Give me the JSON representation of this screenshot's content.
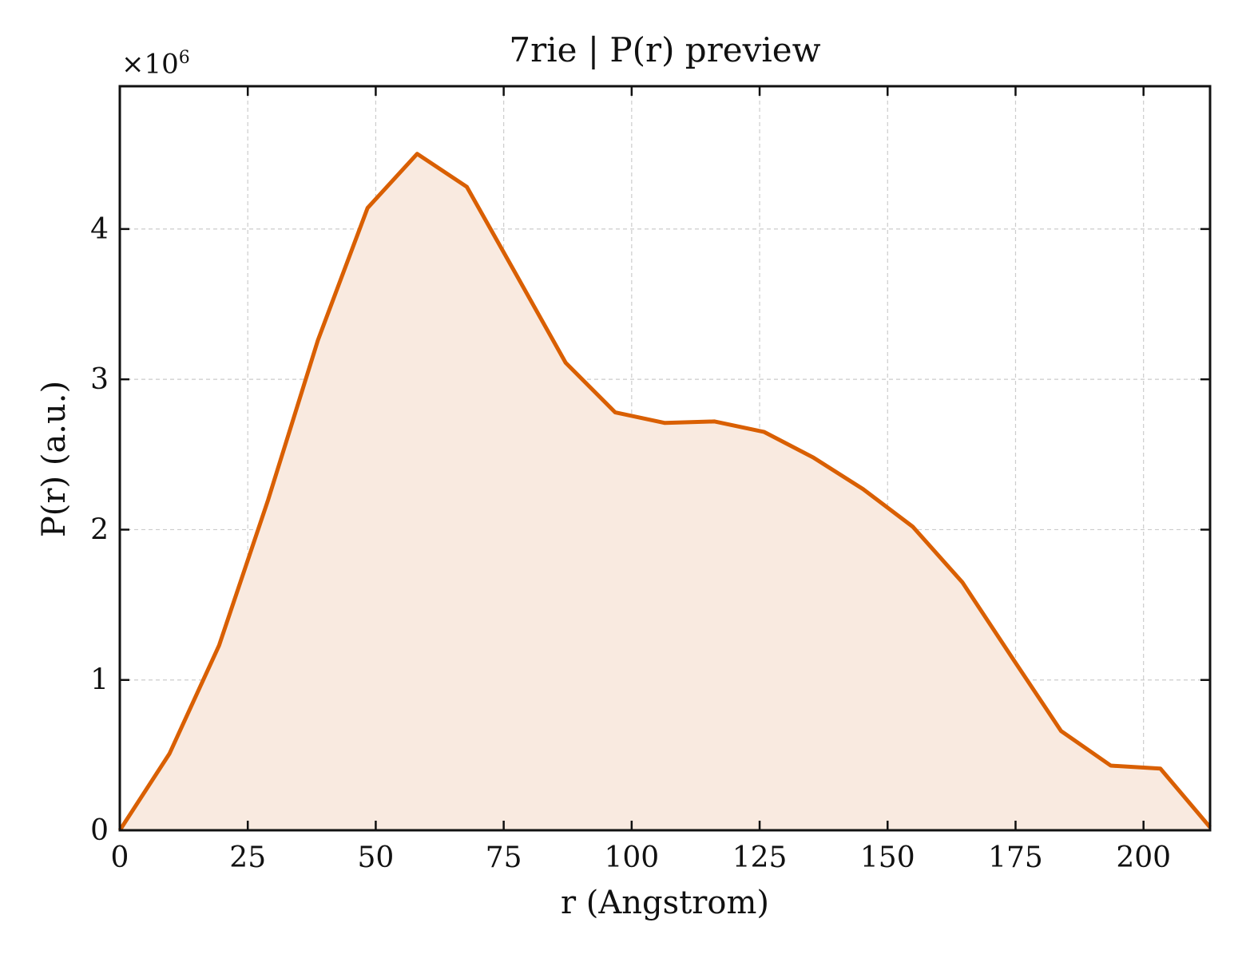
{
  "chart_data": {
    "type": "area",
    "title": "7rie | P(r) preview",
    "xlabel": "r (Angstrom)",
    "ylabel": "P(r) (a.u.)",
    "y_offset_label": "×10",
    "y_offset_exponent": "6",
    "xlim": [
      0,
      213
    ],
    "ylim": [
      0,
      4.95
    ],
    "grid": true,
    "x_ticks": [
      0,
      25,
      50,
      75,
      100,
      125,
      150,
      175,
      200
    ],
    "y_ticks": [
      0,
      1,
      2,
      3,
      4
    ],
    "line_color": "#d95f02",
    "fill_color": "#f9eae0",
    "series": [
      {
        "x": [
          0,
          9.7,
          19.4,
          29.0,
          38.7,
          48.4,
          58.1,
          67.8,
          77.4,
          87.1,
          96.8,
          106.5,
          116.2,
          125.9,
          135.5,
          145.2,
          154.9,
          164.6,
          174.3,
          183.9,
          193.6,
          203.3,
          213.0
        ],
        "y": [
          0.0,
          0.51,
          1.23,
          2.2,
          3.26,
          4.14,
          4.5,
          4.28,
          3.7,
          3.11,
          2.78,
          2.71,
          2.72,
          2.65,
          2.48,
          2.27,
          2.02,
          1.65,
          1.15,
          0.66,
          0.43,
          0.41,
          0.02
        ]
      }
    ]
  }
}
